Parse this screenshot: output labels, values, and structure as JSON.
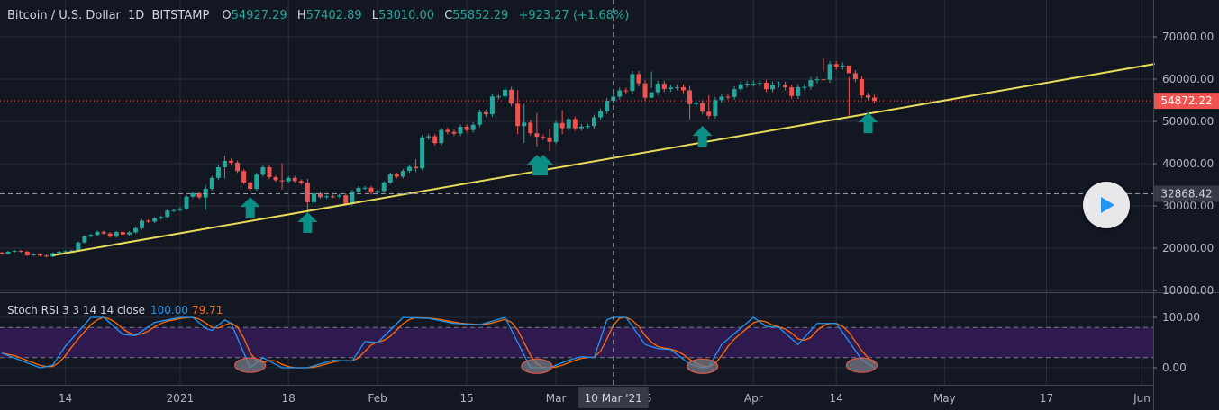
{
  "header": {
    "symbol": "Bitcoin / U.S. Dollar",
    "interval": "1D",
    "exchange": "BITSTAMP",
    "o_label": "O",
    "o_value": "54927.29",
    "h_label": "H",
    "h_value": "57402.89",
    "l_label": "L",
    "l_value": "53010.00",
    "c_label": "C",
    "c_value": "55852.29",
    "change": "+923.27 (+1.68%)"
  },
  "indicator": {
    "title": "Stoch RSI 3 3 14 14 close",
    "k_value": "100.00",
    "d_value": "79.71"
  },
  "crosshair": {
    "date_label": "10 Mar '21",
    "price_label": "32868.42",
    "date": "2021-03-10",
    "price": 32868.42
  },
  "last_price": {
    "label": "54872.22",
    "value": 54872.22
  },
  "colors": {
    "background": "#131722",
    "grid": "#2a2e39",
    "up": "#26a69a",
    "down": "#ef5350",
    "trendline": "#e9dc5b",
    "arrow": "#0b8f85",
    "stoch_k": "#2196f3",
    "stoch_d": "#ff6d00",
    "band": "#2e1a4e",
    "last_price": "#f05350"
  },
  "play_button": {
    "icon": "play-icon"
  },
  "chart_data": {
    "type": "candlestick",
    "title": "Bitcoin / U.S. Dollar 1D BITSTAMP",
    "start_date": "2020-12-04",
    "first_open": 18950,
    "closes": [
      18650,
      19150,
      19350,
      19180,
      18320,
      18550,
      18250,
      18030,
      18800,
      19170,
      19270,
      19440,
      21350,
      22800,
      23130,
      23870,
      23480,
      22740,
      23820,
      23240,
      23730,
      24710,
      26490,
      26280,
      27080,
      27370,
      28880,
      28990,
      29390,
      32200,
      33000,
      32020,
      34030,
      36630,
      39150,
      40670,
      40240,
      38240,
      35540,
      34010,
      37390,
      39150,
      36820,
      36070,
      35820,
      36630,
      35890,
      35470,
      30850,
      32950,
      32080,
      32260,
      32250,
      32510,
      30430,
      33420,
      34260,
      34310,
      33110,
      33530,
      35510,
      37470,
      36930,
      38290,
      39260,
      38900,
      46200,
      46480,
      44850,
      47970,
      47500,
      47100,
      48720,
      47940,
      49200,
      52150,
      51680,
      55890,
      55920,
      57490,
      54210,
      48890,
      49710,
      47180,
      46340,
      46190,
      45140,
      49630,
      48380,
      50540,
      48370,
      48760,
      48880,
      50970,
      52380,
      54880,
      55850,
      57330,
      57220,
      61190,
      59010,
      55600,
      56900,
      58910,
      57650,
      58030,
      58100,
      57350,
      54080,
      54340,
      52300,
      51300,
      55050,
      55860,
      55780,
      57630,
      58780,
      58920,
      58960,
      59130,
      57600,
      58730,
      58730,
      58060,
      56000,
      58120,
      58170,
      59770,
      59960,
      59840,
      63540,
      62960,
      63220,
      61400,
      60000,
      56150,
      55630,
      54872.22
    ],
    "wick_overrides": {
      "32": [
        35000,
        29000
      ],
      "35": [
        41900,
        36500
      ],
      "44": [
        40100,
        33900
      ],
      "48": [
        36400,
        28800
      ],
      "65": [
        41000,
        38000
      ],
      "81": [
        57400,
        47000
      ],
      "82": [
        54200,
        44900
      ],
      "84": [
        52000,
        44100
      ],
      "86": [
        48300,
        43000
      ],
      "88": [
        52600,
        47000
      ],
      "102": [
        61800,
        57900
      ],
      "108": [
        58400,
        50500
      ],
      "111": [
        56200,
        50600
      ],
      "129": [
        64900,
        61800
      ],
      "133": [
        60500,
        51300
      ]
    },
    "y_axis": {
      "ticks": [
        "70000.00",
        "60000.00",
        "50000.00",
        "40000.00",
        "30000.00",
        "20000.00",
        "10000.00"
      ],
      "tick_values": [
        70000,
        60000,
        50000,
        40000,
        30000,
        20000,
        10000
      ],
      "range": [
        9000,
        73000
      ]
    },
    "x_axis": {
      "ticks": [
        {
          "label": "14",
          "date": "2020-12-14"
        },
        {
          "label": "2021",
          "date": "2021-01-01"
        },
        {
          "label": "18",
          "date": "2021-01-18"
        },
        {
          "label": "Feb",
          "date": "2021-02-01"
        },
        {
          "label": "15",
          "date": "2021-02-15"
        },
        {
          "label": "Mar",
          "date": "2021-03-01"
        },
        {
          "label": "15",
          "date": "2021-03-15"
        },
        {
          "label": "Apr",
          "date": "2021-04-01"
        },
        {
          "label": "14",
          "date": "2021-04-14"
        },
        {
          "label": "May",
          "date": "2021-05-01"
        },
        {
          "label": "17",
          "date": "2021-05-17"
        },
        {
          "label": "Jun",
          "date": "2021-06-01"
        }
      ]
    },
    "trendline": [
      [
        "2020-12-12",
        18300
      ],
      [
        "2021-06-03",
        63600
      ]
    ],
    "arrows": [
      {
        "date": "2021-01-12",
        "price": 32100
      },
      {
        "date": "2021-01-21",
        "price": 28500
      },
      {
        "date": "2021-02-26",
        "price": 42100
      },
      {
        "date": "2021-02-27",
        "price": 42100
      },
      {
        "date": "2021-03-24",
        "price": 48900
      },
      {
        "date": "2021-04-19",
        "price": 52100
      }
    ],
    "stoch": {
      "y_ticks": [
        "100.00",
        "0.00"
      ],
      "tick_values": [
        100,
        0
      ],
      "upper_band": 80,
      "lower_band": 20,
      "d_smoothing": 3,
      "k_points": [
        [
          "2020-12-04",
          29
        ],
        [
          "2020-12-10",
          0
        ],
        [
          "2020-12-12",
          5
        ],
        [
          "2020-12-14",
          43
        ],
        [
          "2020-12-18",
          100
        ],
        [
          "2020-12-20",
          100
        ],
        [
          "2020-12-23",
          66
        ],
        [
          "2020-12-25",
          64
        ],
        [
          "2020-12-28",
          90
        ],
        [
          "2021-01-01",
          100
        ],
        [
          "2021-01-03",
          100
        ],
        [
          "2021-01-05",
          78
        ],
        [
          "2021-01-06",
          74
        ],
        [
          "2021-01-08",
          95
        ],
        [
          "2021-01-09",
          88
        ],
        [
          "2021-01-12",
          0
        ],
        [
          "2021-01-14",
          20
        ],
        [
          "2021-01-17",
          0
        ],
        [
          "2021-01-21",
          0
        ],
        [
          "2021-01-25",
          15
        ],
        [
          "2021-01-28",
          13
        ],
        [
          "2021-01-30",
          52
        ],
        [
          "2021-02-01",
          50
        ],
        [
          "2021-02-05",
          100
        ],
        [
          "2021-02-09",
          98
        ],
        [
          "2021-02-13",
          88
        ],
        [
          "2021-02-17",
          85
        ],
        [
          "2021-02-21",
          100
        ],
        [
          "2021-02-25",
          0
        ],
        [
          "2021-02-28",
          0
        ],
        [
          "2021-03-03",
          15
        ],
        [
          "2021-03-05",
          22
        ],
        [
          "2021-03-07",
          20
        ],
        [
          "2021-03-09",
          95
        ],
        [
          "2021-03-10",
          100
        ],
        [
          "2021-03-12",
          100
        ],
        [
          "2021-03-15",
          46
        ],
        [
          "2021-03-17",
          38
        ],
        [
          "2021-03-19",
          36
        ],
        [
          "2021-03-22",
          7
        ],
        [
          "2021-03-24",
          0
        ],
        [
          "2021-03-25",
          2
        ],
        [
          "2021-03-27",
          46
        ],
        [
          "2021-04-01",
          100
        ],
        [
          "2021-04-03",
          82
        ],
        [
          "2021-04-05",
          80
        ],
        [
          "2021-04-08",
          46
        ],
        [
          "2021-04-11",
          88
        ],
        [
          "2021-04-14",
          88
        ],
        [
          "2021-04-18",
          16
        ],
        [
          "2021-04-20",
          0
        ]
      ],
      "highlight_circles": [
        {
          "date": "2021-01-12",
          "value": 5
        },
        {
          "date": "2021-02-26",
          "value": 3
        },
        {
          "date": "2021-03-24",
          "value": 3
        },
        {
          "date": "2021-04-18",
          "value": 5
        }
      ]
    }
  }
}
